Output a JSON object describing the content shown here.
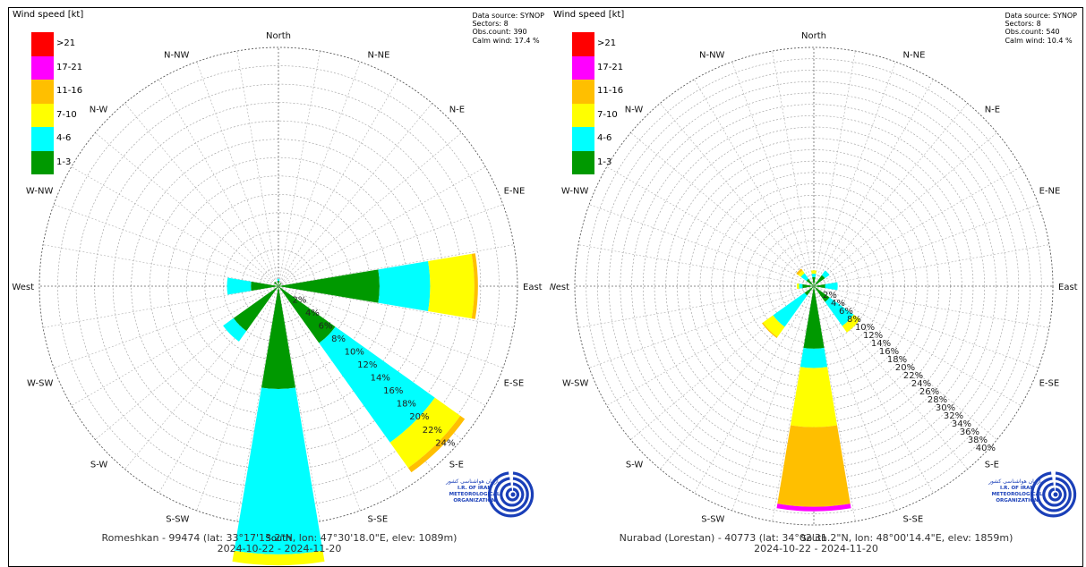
{
  "legend": {
    "title": "Wind speed [kt]",
    "bins": [
      {
        "label": ">21",
        "color": "#ff0000"
      },
      {
        "label": "17-21",
        "color": "#ff00ff"
      },
      {
        "label": "11-16",
        "color": "#ffbf00"
      },
      {
        "label": "7-10",
        "color": "#ffff00"
      },
      {
        "label": "4-6",
        "color": "#00ffff"
      },
      {
        "label": "1-3",
        "color": "#009900"
      }
    ]
  },
  "directions": [
    "North",
    "N-NE",
    "N-E",
    "E-NE",
    "East",
    "E-SE",
    "S-E",
    "S-SE",
    "South",
    "S-SW",
    "S-W",
    "W-SW",
    "West",
    "W-NW",
    "N-W",
    "N-NW"
  ],
  "logo": {
    "title": "I.R. OF IRAN",
    "line2": "METEOROLOGICAL",
    "line3": "ORGANIZATION",
    "script": "سازمان هواشناسی کشور"
  },
  "chart_data": [
    {
      "type": "polar-bar",
      "station": "Romeshkan - 99474 (lat: 33°17'13.2\"N, lon: 47°30'18.0\"E, elev: 1089m)",
      "period": "2024-10-22 - 2024-11-20",
      "source": "Data source: SYNOP",
      "sectors": "Sectors: 8",
      "obs": "Obs.count: 390",
      "calm": "Calm wind: 17.4 %",
      "rmax": 26,
      "ring_step": 2,
      "ring_labels": [
        "2%",
        "4%",
        "6%",
        "8%",
        "10%",
        "12%",
        "14%",
        "16%",
        "18%",
        "20%",
        "22%",
        "24%"
      ],
      "petals": [
        {
          "dir": 0,
          "seg": [
            0.6,
            0.2,
            0.0,
            0.0,
            0.0,
            0.0
          ]
        },
        {
          "dir": 45,
          "seg": [
            0.4,
            0.0,
            0.0,
            0.0,
            0.0,
            0.0
          ]
        },
        {
          "dir": 90,
          "seg": [
            11.0,
            5.5,
            4.8,
            0.4,
            0.0,
            0.0
          ]
        },
        {
          "dir": 135,
          "seg": [
            7.6,
            13.3,
            3.4,
            0.6,
            0.0,
            0.0
          ]
        },
        {
          "dir": 180,
          "seg": [
            11.2,
            18.0,
            1.2,
            0.0,
            0.0,
            0.0
          ]
        },
        {
          "dir": 225,
          "seg": [
            6.0,
            1.4,
            0.0,
            0.0,
            0.0,
            0.0
          ]
        },
        {
          "dir": 270,
          "seg": [
            3.0,
            2.6,
            0.0,
            0.0,
            0.0,
            0.0
          ]
        },
        {
          "dir": 315,
          "seg": [
            0.6,
            0.0,
            0.0,
            0.0,
            0.0,
            0.0
          ]
        }
      ]
    },
    {
      "type": "polar-bar",
      "station": "Nurabad (Lorestan) - 40773 (lat: 34°02'31.2\"N, lon: 48°00'14.4\"E, elev: 1859m)",
      "period": "2024-10-22 - 2024-11-20",
      "source": "Data source: SYNOP",
      "sectors": "Sectors: 8",
      "obs": "Obs.count: 540",
      "calm": "Calm wind: 10.4 %",
      "rmax": 42,
      "ring_step": 2,
      "ring_labels": [
        "2%",
        "4%",
        "6%",
        "8%",
        "10%",
        "12%",
        "14%",
        "16%",
        "18%",
        "20%",
        "22%",
        "24%",
        "26%",
        "28%",
        "30%",
        "32%",
        "34%",
        "36%",
        "38%",
        "40%"
      ],
      "petals": [
        {
          "dir": 0,
          "seg": [
            1.6,
            0.6,
            0.6,
            0.0,
            0.0,
            0.0
          ]
        },
        {
          "dir": 45,
          "seg": [
            2.4,
            1.0,
            0.0,
            0.0,
            0.0,
            0.0
          ]
        },
        {
          "dir": 90,
          "seg": [
            2.0,
            2.2,
            0.0,
            0.0,
            0.0,
            0.0
          ]
        },
        {
          "dir": 135,
          "seg": [
            3.4,
            5.2,
            1.4,
            0.0,
            0.0,
            0.0
          ]
        },
        {
          "dir": 180,
          "seg": [
            11.0,
            3.4,
            10.4,
            14.0,
            0.8,
            0.0
          ]
        },
        {
          "dir": 225,
          "seg": [
            2.0,
            6.8,
            2.2,
            0.2,
            0.0,
            0.0
          ]
        },
        {
          "dir": 270,
          "seg": [
            2.0,
            0.6,
            0.4,
            0.0,
            0.0,
            0.0
          ]
        },
        {
          "dir": 315,
          "seg": [
            1.6,
            1.2,
            0.6,
            0.4,
            0.0,
            0.0
          ]
        }
      ]
    }
  ]
}
